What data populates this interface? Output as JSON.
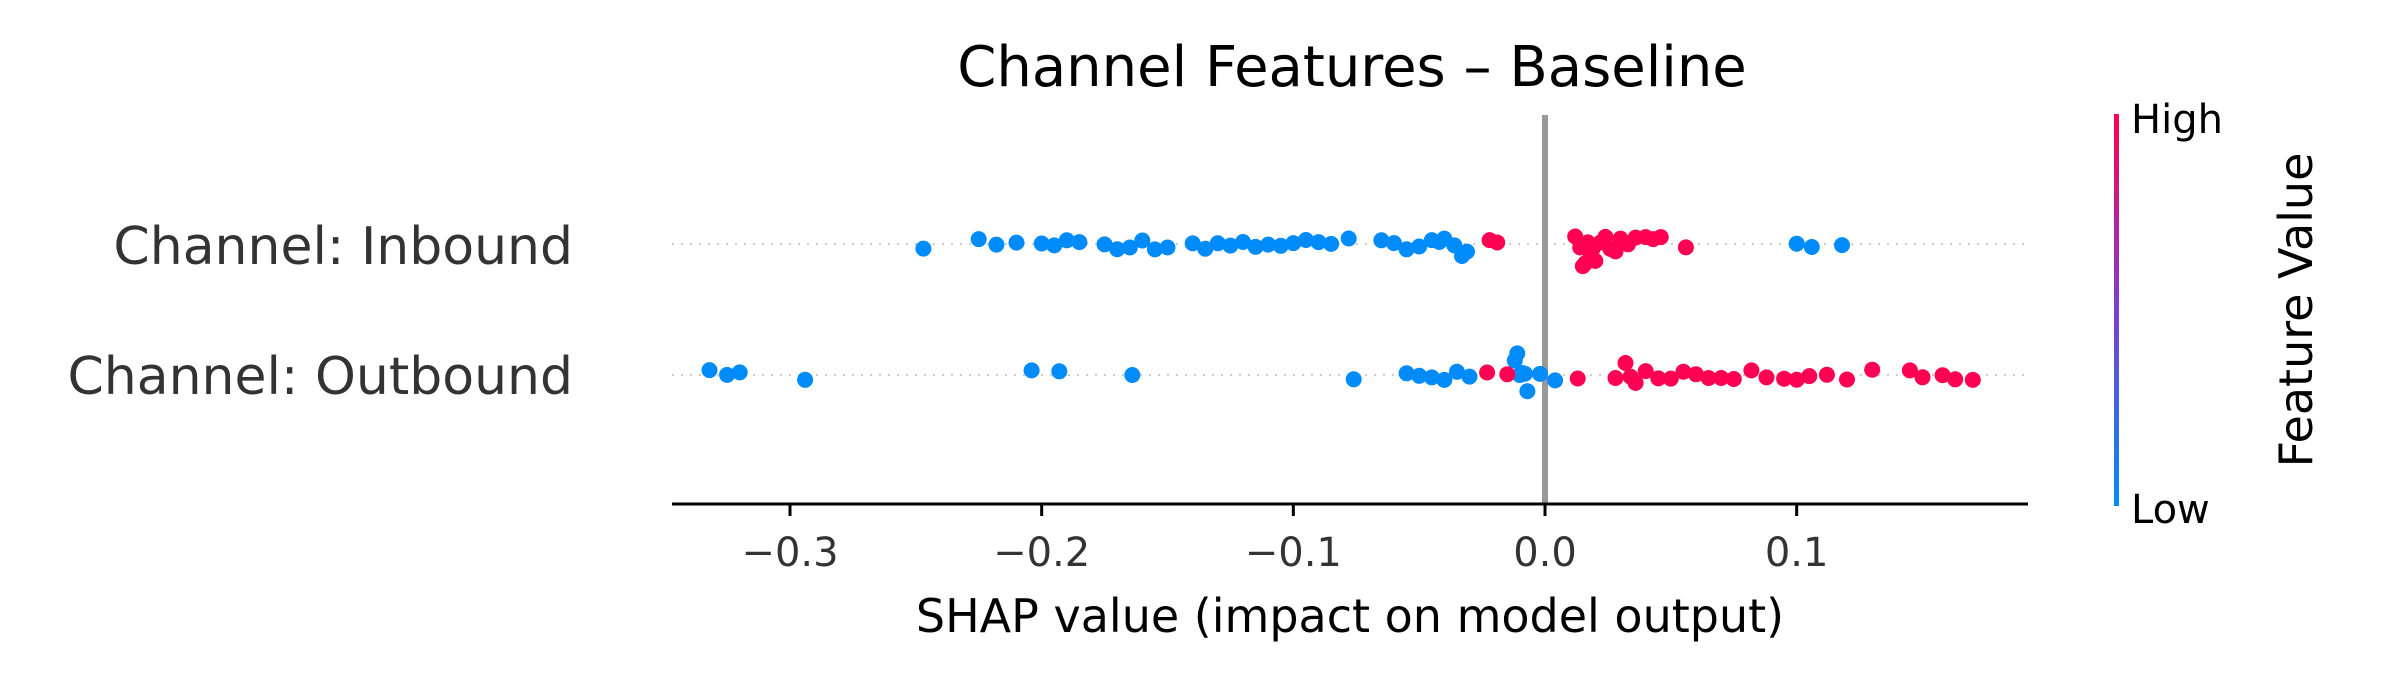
{
  "chart_data": {
    "type": "scatter",
    "title": "Channel Features – Baseline",
    "xlabel": "SHAP value (impact on model output)",
    "xlim": [
      -0.355,
      0.2
    ],
    "xticks": [
      -0.3,
      -0.2,
      -0.1,
      0.0,
      0.1
    ],
    "xtick_labels": [
      "−0.3",
      "−0.2",
      "−0.1",
      "0.0",
      "0.1"
    ],
    "colorbar": {
      "title": "Feature Value",
      "high_label": "High",
      "low_label": "Low",
      "high_color": "#ff0052",
      "low_color": "#008bfb"
    },
    "colors": {
      "high": "#ff0052",
      "low": "#008bfb",
      "zero_line": "#999999"
    },
    "series": [
      {
        "feature": "Channel: Inbound",
        "low_points": [
          -0.247,
          -0.225,
          -0.218,
          -0.21,
          -0.2,
          -0.195,
          -0.19,
          -0.185,
          -0.175,
          -0.17,
          -0.165,
          -0.16,
          -0.155,
          -0.15,
          -0.14,
          -0.135,
          -0.13,
          -0.125,
          -0.12,
          -0.115,
          -0.11,
          -0.105,
          -0.1,
          -0.095,
          -0.09,
          -0.085,
          -0.078,
          -0.065,
          -0.06,
          -0.055,
          -0.05,
          -0.045,
          -0.042,
          -0.04,
          -0.036,
          -0.033,
          -0.031,
          0.1,
          0.106,
          0.118
        ],
        "high_points": [
          -0.022,
          -0.019,
          0.012,
          0.014,
          0.015,
          0.016,
          0.017,
          0.018,
          0.019,
          0.02,
          0.022,
          0.024,
          0.026,
          0.028,
          0.03,
          0.033,
          0.036,
          0.04,
          0.043,
          0.046,
          0.056
        ]
      },
      {
        "feature": "Channel: Outbound",
        "low_points": [
          -0.332,
          -0.325,
          -0.32,
          -0.294,
          -0.204,
          -0.193,
          -0.164,
          -0.076,
          -0.055,
          -0.05,
          -0.045,
          -0.04,
          -0.035,
          -0.03,
          -0.012,
          -0.011,
          -0.01,
          -0.009,
          -0.008,
          -0.007,
          -0.002,
          0.004
        ],
        "high_points": [
          -0.023,
          -0.015,
          0.013,
          0.028,
          0.032,
          0.034,
          0.036,
          0.04,
          0.045,
          0.05,
          0.055,
          0.06,
          0.065,
          0.07,
          0.075,
          0.082,
          0.088,
          0.095,
          0.1,
          0.105,
          0.112,
          0.12,
          0.13,
          0.145,
          0.15,
          0.158,
          0.163,
          0.17
        ]
      }
    ]
  }
}
